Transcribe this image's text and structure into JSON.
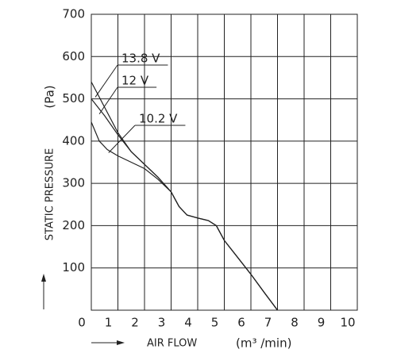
{
  "chart_data": {
    "type": "line",
    "y_label": "STATIC PRESSURE",
    "y_unit": "(Pa)",
    "x_label": "AIR FLOW",
    "x_unit": "(m³ /min)",
    "xlim": [
      0,
      10
    ],
    "xticks": [
      0,
      1,
      2,
      3,
      4,
      5,
      6,
      7,
      8,
      9,
      10
    ],
    "ylim": [
      0,
      700
    ],
    "yticks": [
      100,
      200,
      300,
      400,
      500,
      600,
      700
    ],
    "grid": true,
    "series": [
      {
        "name": "13.8 V",
        "color": "#222222",
        "x": [
          0,
          0.5,
          1,
          1.5,
          2,
          2.5,
          3,
          3.3,
          3.6,
          4,
          4.4,
          4.7,
          5,
          5.5,
          6,
          6.5,
          7
        ],
        "values": [
          540,
          480,
          420,
          375,
          345,
          315,
          280,
          245,
          225,
          218,
          212,
          200,
          165,
          125,
          85,
          42,
          0
        ]
      },
      {
        "name": "12 V",
        "color": "#222222",
        "x": [
          0,
          0.5,
          1,
          1.5,
          2,
          2.5,
          3,
          3.3,
          3.6,
          4,
          4.4,
          4.7,
          5,
          5.5,
          6,
          6.5,
          7
        ],
        "values": [
          500,
          460,
          415,
          375,
          345,
          315,
          280,
          245,
          225,
          218,
          212,
          200,
          165,
          125,
          85,
          42,
          0
        ]
      },
      {
        "name": "10.2 V",
        "color": "#222222",
        "x": [
          0,
          0.3,
          0.6,
          1,
          1.5,
          2,
          2.5,
          3,
          3.3,
          3.6,
          4,
          4.4,
          4.7,
          5,
          5.5,
          6,
          6.5,
          7
        ],
        "values": [
          445,
          400,
          380,
          365,
          350,
          335,
          310,
          280,
          245,
          225,
          218,
          212,
          200,
          165,
          125,
          85,
          42,
          0
        ]
      }
    ]
  }
}
